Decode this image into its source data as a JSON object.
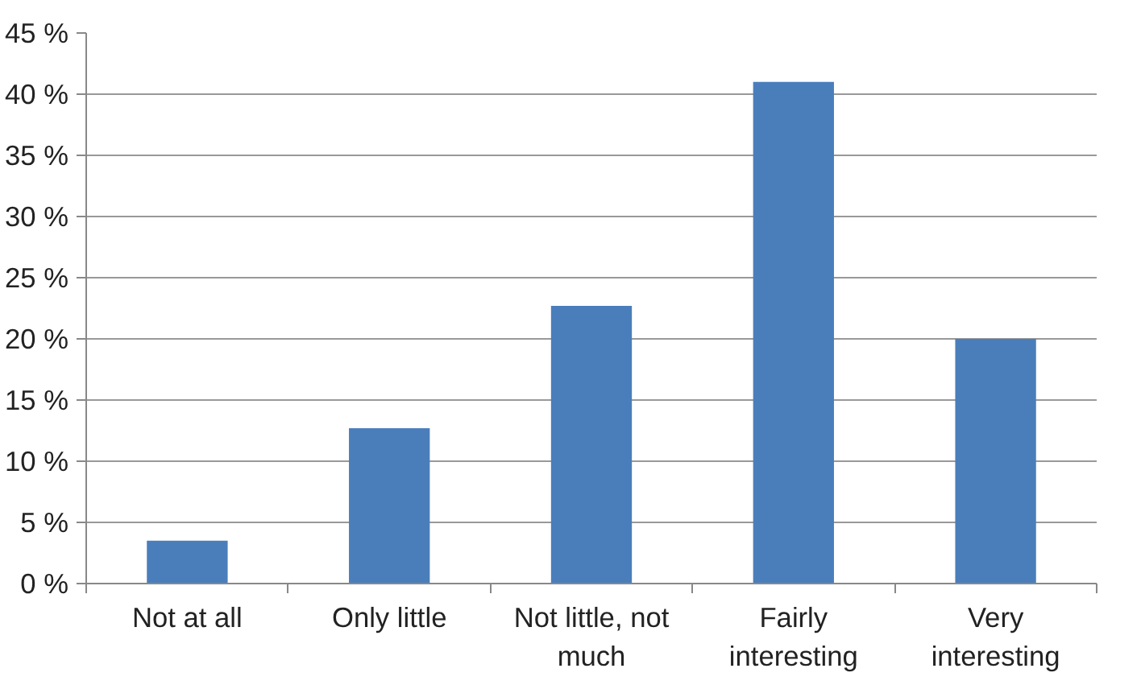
{
  "chart_data": {
    "type": "bar",
    "categories": [
      "Not at all",
      "Only little",
      "Not little, not much",
      "Fairly interesting",
      "Very interesting"
    ],
    "values": [
      3.5,
      12.7,
      22.7,
      41.0,
      20.0
    ],
    "color": "#4a7ebb",
    "ylim": [
      0,
      45
    ],
    "yticks": [
      {
        "value": 0,
        "label": "0 %"
      },
      {
        "value": 5,
        "label": "5 %"
      },
      {
        "value": 10,
        "label": "10 %"
      },
      {
        "value": 15,
        "label": "15 %"
      },
      {
        "value": 20,
        "label": "20 %"
      },
      {
        "value": 25,
        "label": "25 %"
      },
      {
        "value": 30,
        "label": "30 %"
      },
      {
        "value": 35,
        "label": "35 %"
      },
      {
        "value": 40,
        "label": "40 %"
      },
      {
        "value": 45,
        "label": "45 %"
      }
    ],
    "grid": "y"
  }
}
